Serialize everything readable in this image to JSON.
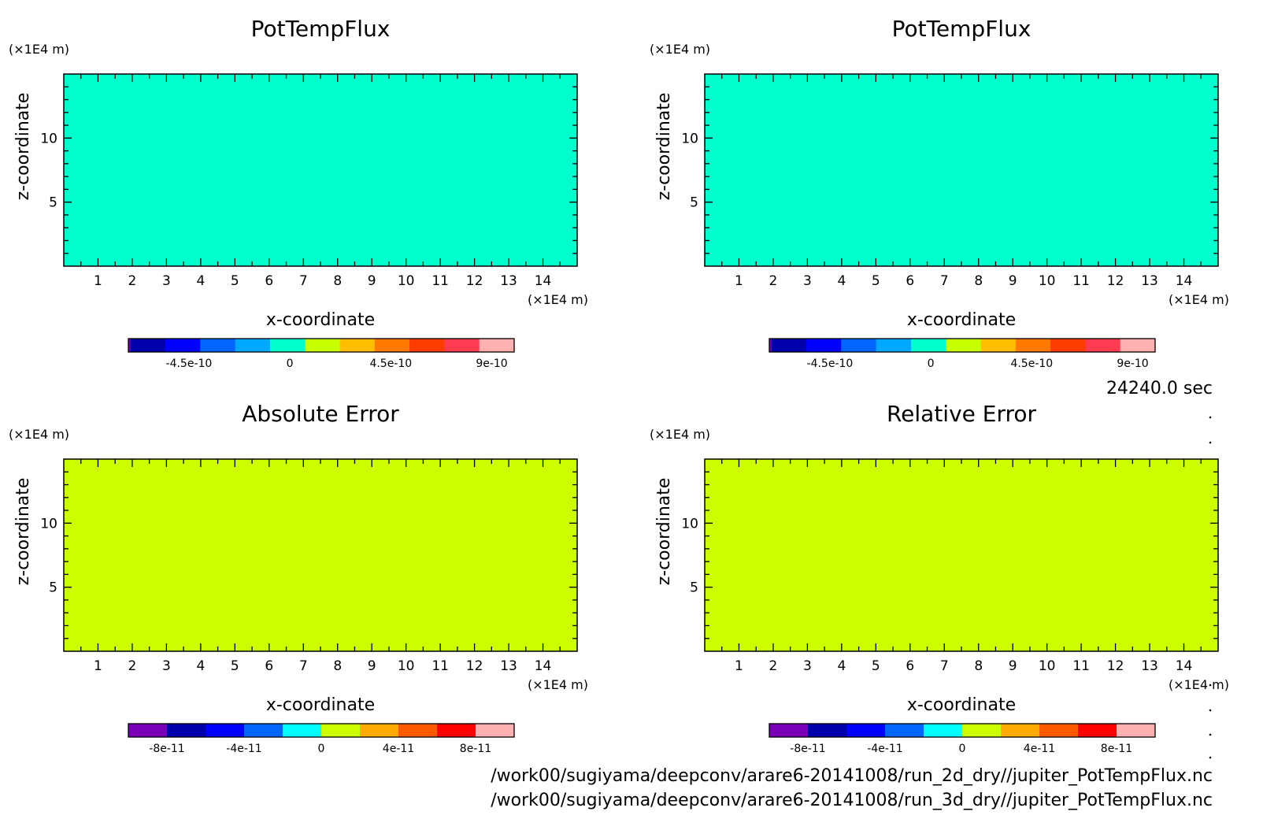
{
  "time_label": "24240.0 sec",
  "file_paths": [
    "/work00/sugiyama/deepconv/arare6-20141008/run_2d_dry//jupiter_PotTempFlux.nc",
    "/work00/sugiyama/deepconv/arare6-20141008/run_3d_dry//jupiter_PotTempFlux.nc"
  ],
  "chart_data": [
    {
      "type": "heatmap",
      "title": "PotTempFlux",
      "xlabel": "x-coordinate",
      "ylabel": "z-coordinate",
      "x_unit": "(×1E4 m)",
      "y_unit": "(×1E4 m)",
      "xlim": [
        0,
        15
      ],
      "ylim": [
        0,
        15
      ],
      "x_ticks": [
        "1",
        "2",
        "3",
        "4",
        "5",
        "6",
        "7",
        "8",
        "9",
        "10",
        "11",
        "12",
        "13",
        "14"
      ],
      "y_ticks": [
        "5",
        "10"
      ],
      "field_color": "#00ffcc",
      "value": 0,
      "colorbar": {
        "colors": [
          "#7a00b8",
          "#0000aa",
          "#0000ff",
          "#0066ff",
          "#00a8ff",
          "#00ffcc",
          "#c8ff00",
          "#ffbf00",
          "#ff7a00",
          "#ff3c00",
          "#ff3c50",
          "#ffb0b0"
        ],
        "widths": [
          0.3,
          5,
          5,
          5,
          5,
          5,
          5,
          5,
          5,
          5,
          5,
          5
        ],
        "tick_labels": [
          "-4.5e-10",
          "0",
          "4.5e-10",
          "9e-10"
        ],
        "tick_values": [
          -4.5e-10,
          0,
          4.5e-10,
          9e-10
        ],
        "range": [
          -7.2e-10,
          1e-09
        ]
      }
    },
    {
      "type": "heatmap",
      "title": "PotTempFlux",
      "xlabel": "x-coordinate",
      "ylabel": "z-coordinate",
      "x_unit": "(×1E4 m)",
      "y_unit": "(×1E4 m)",
      "xlim": [
        0,
        15
      ],
      "ylim": [
        0,
        15
      ],
      "x_ticks": [
        "1",
        "2",
        "3",
        "4",
        "5",
        "6",
        "7",
        "8",
        "9",
        "10",
        "11",
        "12",
        "13",
        "14"
      ],
      "y_ticks": [
        "5",
        "10"
      ],
      "field_color": "#00ffcc",
      "value": 0,
      "colorbar": {
        "colors": [
          "#7a00b8",
          "#0000aa",
          "#0000ff",
          "#0066ff",
          "#00a8ff",
          "#00ffcc",
          "#c8ff00",
          "#ffbf00",
          "#ff7a00",
          "#ff3c00",
          "#ff3c50",
          "#ffb0b0"
        ],
        "widths": [
          0.3,
          5,
          5,
          5,
          5,
          5,
          5,
          5,
          5,
          5,
          5,
          5
        ],
        "tick_labels": [
          "-4.5e-10",
          "0",
          "4.5e-10",
          "9e-10"
        ],
        "tick_values": [
          -4.5e-10,
          0,
          4.5e-10,
          9e-10
        ],
        "range": [
          -7.2e-10,
          1e-09
        ]
      }
    },
    {
      "type": "heatmap",
      "title": "Absolute Error",
      "xlabel": "x-coordinate",
      "ylabel": "z-coordinate",
      "x_unit": "(×1E4 m)",
      "y_unit": "(×1E4 m)",
      "xlim": [
        0,
        15
      ],
      "ylim": [
        0,
        15
      ],
      "x_ticks": [
        "1",
        "2",
        "3",
        "4",
        "5",
        "6",
        "7",
        "8",
        "9",
        "10",
        "11",
        "12",
        "13",
        "14"
      ],
      "y_ticks": [
        "5",
        "10"
      ],
      "field_color": "#ccff00",
      "value": 0,
      "colorbar": {
        "colors": [
          "#7a00b8",
          "#0000aa",
          "#0000ff",
          "#0066ff",
          "#00ffff",
          "#ccff00",
          "#ffaa00",
          "#ff5a00",
          "#ff0000",
          "#ffb0b0"
        ],
        "widths": [
          1,
          1,
          1,
          1,
          1,
          1,
          1,
          1,
          1,
          1
        ],
        "tick_labels": [
          "-8e-11",
          "-4e-11",
          "0",
          "4e-11",
          "8e-11"
        ],
        "tick_values": [
          -8e-11,
          -4e-11,
          0,
          4e-11,
          8e-11
        ],
        "range": [
          -1e-10,
          1e-10
        ]
      }
    },
    {
      "type": "heatmap",
      "title": "Relative Error",
      "xlabel": "x-coordinate",
      "ylabel": "z-coordinate",
      "x_unit": "(×1E4 m)",
      "y_unit": "(×1E4 m)",
      "xlim": [
        0,
        15
      ],
      "ylim": [
        0,
        15
      ],
      "x_ticks": [
        "1",
        "2",
        "3",
        "4",
        "5",
        "6",
        "7",
        "8",
        "9",
        "10",
        "11",
        "12",
        "13",
        "14"
      ],
      "y_ticks": [
        "5",
        "10"
      ],
      "field_color": "#ccff00",
      "value": 0,
      "colorbar": {
        "colors": [
          "#7a00b8",
          "#0000aa",
          "#0000ff",
          "#0066ff",
          "#00ffff",
          "#ccff00",
          "#ffaa00",
          "#ff5a00",
          "#ff0000",
          "#ffb0b0"
        ],
        "widths": [
          1,
          1,
          1,
          1,
          1,
          1,
          1,
          1,
          1,
          1
        ],
        "tick_labels": [
          "-8e-11",
          "-4e-11",
          "0",
          "4e-11",
          "8e-11"
        ],
        "tick_values": [
          -8e-11,
          -4e-11,
          0,
          4e-11,
          8e-11
        ],
        "range": [
          -1e-10,
          1e-10
        ]
      }
    }
  ]
}
